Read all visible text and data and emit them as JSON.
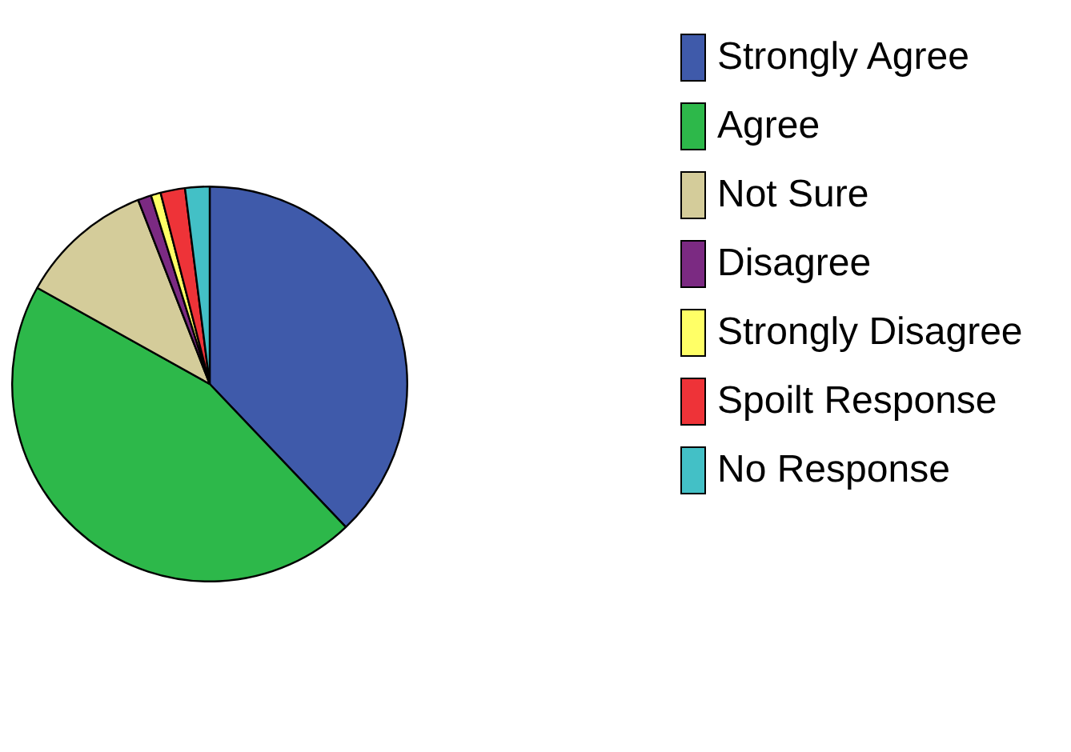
{
  "chart_data": {
    "type": "pie",
    "categories": [
      "Strongly Agree",
      "Agree",
      "Not Sure",
      "Disagree",
      "Strongly Disagree",
      "Spoilt Response",
      "No Response"
    ],
    "values": [
      37.9,
      45.2,
      11.0,
      1.1,
      0.8,
      2.0,
      2.0
    ],
    "colors": [
      "#3f5aaa",
      "#2db84a",
      "#d4cc9a",
      "#7b2a82",
      "#ffff66",
      "#ee3338",
      "#43c0c6"
    ],
    "legend": "top right"
  }
}
